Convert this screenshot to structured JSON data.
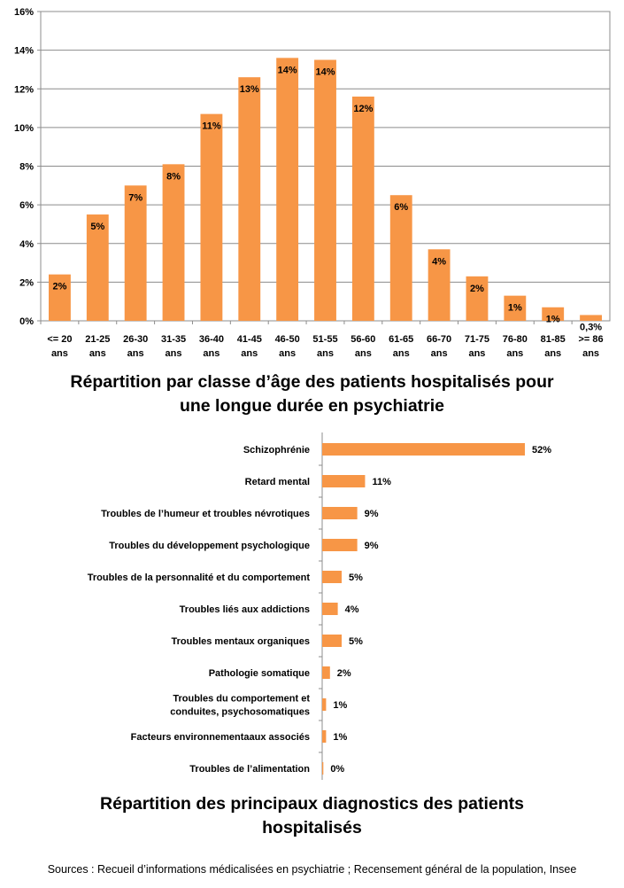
{
  "chart_data": [
    {
      "type": "bar",
      "title": "Répartition par classe d’âge des patients hospitalisés pour une longue durée en psychiatrie",
      "categories": [
        [
          "<= 20",
          "ans"
        ],
        [
          "21-25",
          "ans"
        ],
        [
          "26-30",
          "ans"
        ],
        [
          "31-35",
          "ans"
        ],
        [
          "36-40",
          "ans"
        ],
        [
          "41-45",
          "ans"
        ],
        [
          "46-50",
          "ans"
        ],
        [
          "51-55",
          "ans"
        ],
        [
          "56-60",
          "ans"
        ],
        [
          "61-65",
          "ans"
        ],
        [
          "66-70",
          "ans"
        ],
        [
          "71-75",
          "ans"
        ],
        [
          "76-80",
          "ans"
        ],
        [
          "81-85",
          "ans"
        ],
        [
          ">= 86",
          "ans"
        ]
      ],
      "values": [
        2.4,
        5.5,
        7.0,
        8.1,
        10.7,
        12.6,
        13.6,
        13.5,
        11.6,
        6.5,
        3.7,
        2.3,
        1.3,
        0.7,
        0.3
      ],
      "data_labels": [
        "2%",
        "5%",
        "7%",
        "8%",
        "11%",
        "13%",
        "14%",
        "14%",
        "12%",
        "6%",
        "4%",
        "2%",
        "1%",
        "1%",
        "0,3%"
      ],
      "ylim": [
        0,
        16
      ],
      "yticks": [
        "0%",
        "2%",
        "4%",
        "6%",
        "8%",
        "10%",
        "12%",
        "14%",
        "16%"
      ],
      "xlabel": "",
      "ylabel": "",
      "grid": true,
      "bar_color": "#F79646"
    },
    {
      "type": "bar",
      "orientation": "horizontal",
      "title": "Répartition des principaux diagnostics des patients hospitalisés",
      "categories": [
        [
          "Schizophrénie"
        ],
        [
          "Retard mental"
        ],
        [
          "Troubles de l’humeur et troubles névrotiques"
        ],
        [
          "Troubles du développement psychologique"
        ],
        [
          "Troubles de la personnalité et du comportement"
        ],
        [
          "Troubles liés aux addictions"
        ],
        [
          "Troubles mentaux organiques"
        ],
        [
          "Pathologie somatique"
        ],
        [
          "Troubles du comportement et",
          "conduites, psychosomatiques"
        ],
        [
          "Facteurs environnementaaux associés"
        ],
        [
          "Troubles de l’alimentation"
        ]
      ],
      "values": [
        52,
        11,
        9,
        9,
        5,
        4,
        5,
        2,
        1,
        1,
        0.3
      ],
      "data_labels": [
        "52%",
        "11%",
        "9%",
        "9%",
        "5%",
        "4%",
        "5%",
        "2%",
        "1%",
        "1%",
        "0%"
      ],
      "xlim": [
        0,
        60
      ],
      "grid": false,
      "bar_color": "#F79646"
    }
  ],
  "titles": {
    "age_chart_title_line1": "Répartition par classe d’âge des patients hospitalisés pour",
    "age_chart_title_line2": "une longue durée en psychiatrie",
    "diag_chart_title_line1": "Répartition des principaux diagnostics des patients",
    "diag_chart_title_line2": "hospitalisés"
  },
  "source": "Sources : Recueil d’informations médicalisées en psychiatrie ; Recensement général de la population, Insee"
}
